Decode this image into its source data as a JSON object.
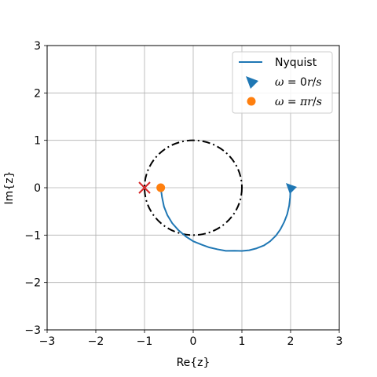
{
  "chart_data": {
    "type": "line",
    "xlabel": "Re{z}",
    "ylabel": "Im{z}",
    "xlim": [
      -3,
      3
    ],
    "ylim": [
      -3,
      3
    ],
    "xticks": [
      -3,
      -2,
      -1,
      0,
      1,
      2,
      3
    ],
    "yticks": [
      -3,
      -2,
      -1,
      0,
      1,
      2,
      3
    ],
    "xtick_labels": [
      "−3",
      "−2",
      "−1",
      "0",
      "1",
      "2",
      "3"
    ],
    "ytick_labels": [
      "−3",
      "−2",
      "−1",
      "0",
      "1",
      "2",
      "3"
    ],
    "grid": true,
    "legend_position": "top-right",
    "series": [
      {
        "name": "Nyquist",
        "color": "#1f77b4",
        "x": [
          2.0,
          1.99,
          1.97,
          1.93,
          1.87,
          1.79,
          1.7,
          1.58,
          1.45,
          1.3,
          1.15,
          1.0,
          0.85,
          0.67,
          0.5,
          0.33,
          0.17,
          0.0,
          -0.15,
          -0.3,
          -0.43,
          -0.53,
          -0.6,
          -0.64,
          -0.667
        ],
        "y": [
          0.0,
          -0.2,
          -0.38,
          -0.56,
          -0.72,
          -0.88,
          -1.01,
          -1.13,
          -1.22,
          -1.28,
          -1.32,
          -1.335,
          -1.33,
          -1.333,
          -1.3,
          -1.26,
          -1.2,
          -1.13,
          -1.03,
          -0.9,
          -0.75,
          -0.58,
          -0.4,
          -0.2,
          0.0
        ]
      }
    ],
    "markers": [
      {
        "name": "ω = 0r/s",
        "symbol": "triangle-down",
        "color": "#1f77b4",
        "x": 2.0,
        "y": 0.0
      },
      {
        "name": "ω = πr/s",
        "symbol": "circle",
        "color": "#ff7f0e",
        "x": -0.667,
        "y": 0.0
      }
    ],
    "critical_point": {
      "symbol": "x",
      "color": "#d62728",
      "x": -1,
      "y": 0
    },
    "unit_circle": {
      "radius": 1,
      "center": [
        0,
        0
      ],
      "color": "#000000",
      "style": "dash-dot"
    },
    "legend": [
      {
        "label": "Nyquist",
        "kind": "line",
        "color": "#1f77b4"
      },
      {
        "label_parts": [
          "ω",
          " = 0",
          "r",
          "/",
          "s"
        ],
        "kind": "triangle",
        "color": "#1f77b4"
      },
      {
        "label_parts": [
          "ω",
          " = ",
          "π",
          "r",
          "/",
          "s"
        ],
        "kind": "circle",
        "color": "#ff7f0e"
      }
    ]
  }
}
